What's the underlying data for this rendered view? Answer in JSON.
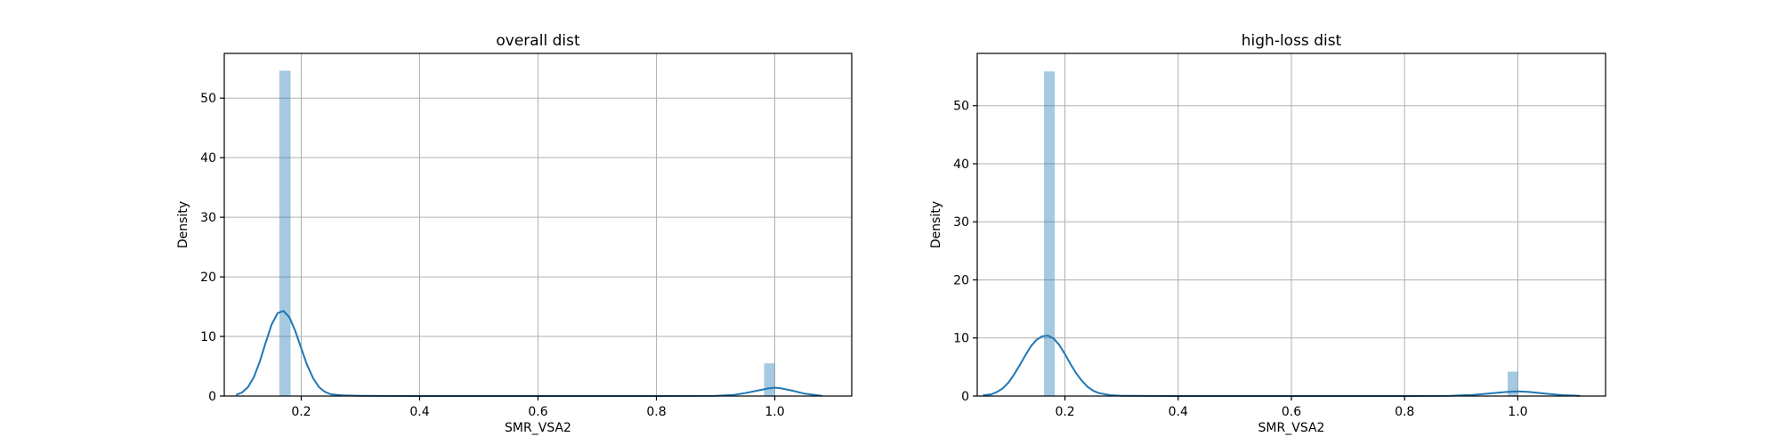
{
  "chart_data": [
    {
      "type": "histogram",
      "title": "overall dist",
      "xlabel": "SMR_VSA2",
      "ylabel": "Density",
      "xlim": [
        0.07,
        1.13
      ],
      "ylim": [
        0,
        57.5
      ],
      "xticks": [
        0.2,
        0.4,
        0.6,
        0.8,
        1.0
      ],
      "xtick_labels": [
        "0.2",
        "0.4",
        "0.6",
        "0.8",
        "1.0"
      ],
      "yticks": [
        0,
        10,
        20,
        30,
        40,
        50
      ],
      "ytick_labels": [
        "0",
        "10",
        "20",
        "30",
        "40",
        "50"
      ],
      "grid": true,
      "bar_color": "#1f77b4",
      "line_color": "#1f77b4",
      "bins": [
        {
          "x0": 0.163,
          "x1": 0.182,
          "density": 54.6
        },
        {
          "x0": 0.982,
          "x1": 1.0,
          "density": 5.5
        }
      ],
      "kde": {
        "x": [
          0.09,
          0.1,
          0.11,
          0.12,
          0.13,
          0.14,
          0.15,
          0.16,
          0.17,
          0.18,
          0.19,
          0.2,
          0.21,
          0.22,
          0.23,
          0.24,
          0.25,
          0.27,
          0.3,
          0.4,
          0.6,
          0.8,
          0.9,
          0.93,
          0.95,
          0.97,
          0.99,
          1.0,
          1.01,
          1.03,
          1.05,
          1.07,
          1.08
        ],
        "y": [
          0.2,
          0.6,
          1.5,
          3.2,
          5.8,
          9.0,
          12.0,
          13.9,
          14.3,
          13.2,
          10.9,
          8.0,
          5.2,
          3.0,
          1.5,
          0.7,
          0.3,
          0.1,
          0.05,
          0.0,
          0.0,
          0.0,
          0.05,
          0.2,
          0.5,
          0.9,
          1.3,
          1.4,
          1.3,
          0.9,
          0.4,
          0.15,
          0.05
        ]
      }
    },
    {
      "type": "histogram",
      "title": "high-loss dist",
      "xlabel": "SMR_VSA2",
      "ylabel": "Density",
      "xlim": [
        0.045,
        1.155
      ],
      "ylim": [
        0,
        59.0
      ],
      "xticks": [
        0.2,
        0.4,
        0.6,
        0.8,
        1.0
      ],
      "xtick_labels": [
        "0.2",
        "0.4",
        "0.6",
        "0.8",
        "1.0"
      ],
      "yticks": [
        0,
        10,
        20,
        30,
        40,
        50
      ],
      "ytick_labels": [
        "0",
        "10",
        "20",
        "30",
        "40",
        "50"
      ],
      "grid": true,
      "bar_color": "#1f77b4",
      "line_color": "#1f77b4",
      "bins": [
        {
          "x0": 0.163,
          "x1": 0.182,
          "density": 55.9
        },
        {
          "x0": 0.982,
          "x1": 1.0,
          "density": 4.2
        }
      ],
      "kde": {
        "x": [
          0.055,
          0.07,
          0.08,
          0.09,
          0.1,
          0.11,
          0.12,
          0.13,
          0.14,
          0.15,
          0.16,
          0.17,
          0.18,
          0.19,
          0.2,
          0.21,
          0.22,
          0.23,
          0.24,
          0.25,
          0.26,
          0.28,
          0.3,
          0.4,
          0.6,
          0.8,
          0.88,
          0.92,
          0.95,
          0.98,
          1.0,
          1.02,
          1.05,
          1.08,
          1.11
        ],
        "y": [
          0.1,
          0.3,
          0.7,
          1.3,
          2.3,
          3.7,
          5.3,
          7.0,
          8.6,
          9.7,
          10.3,
          10.4,
          9.9,
          8.8,
          7.2,
          5.5,
          3.9,
          2.6,
          1.6,
          0.9,
          0.5,
          0.15,
          0.05,
          0.0,
          0.0,
          0.0,
          0.05,
          0.2,
          0.45,
          0.7,
          0.8,
          0.7,
          0.4,
          0.15,
          0.03
        ]
      }
    }
  ]
}
